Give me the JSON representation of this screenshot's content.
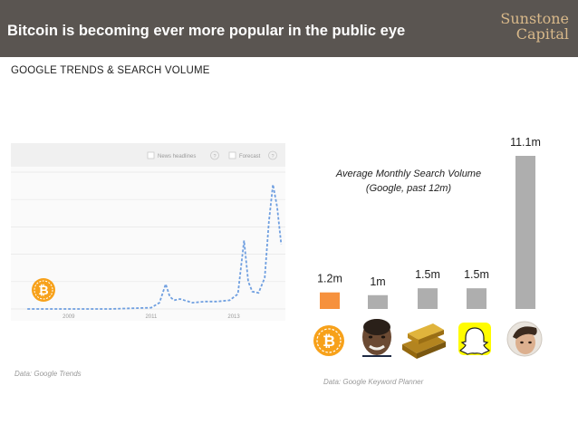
{
  "header": {
    "title": "Bitcoin is becoming ever more popular in the public eye",
    "brand_line1": "Sunstone",
    "brand_line2": "Capital"
  },
  "section_title": "GOOGLE TRENDS & SEARCH VOLUME",
  "trends_panel": {
    "legend_news": "News headlines",
    "legend_forecast": "Forecast",
    "help_glyph": "?",
    "year_labels": [
      "2009",
      "2011",
      "2013"
    ],
    "source": "Data: Google Trends"
  },
  "volume_panel": {
    "title_line1": "Average Monthly Search Volume",
    "title_line2": "(Google, past 12m)",
    "source": "Data: Google Keyword Planner"
  },
  "colors": {
    "header_bg": "#5a5551",
    "brand": "#d9b98a",
    "bitcoin_bar": "#f6913d",
    "other_bars": "#aeaeae",
    "trend_line": "#6f9fe0",
    "bitcoin_icon": "#f7a11a"
  },
  "chart_data": [
    {
      "type": "line",
      "title": "",
      "xlabel": "",
      "ylabel": "",
      "x_ticks": [
        "2009",
        "2011",
        "2013"
      ],
      "x": [
        2008.0,
        2009.0,
        2010.0,
        2011.0,
        2011.2,
        2011.35,
        2011.45,
        2011.55,
        2011.7,
        2012.0,
        2012.3,
        2012.6,
        2012.9,
        2013.1,
        2013.25,
        2013.35,
        2013.45,
        2013.6,
        2013.75,
        2013.85,
        2013.95,
        2014.05,
        2014.15
      ],
      "series": [
        {
          "values": [
            0,
            0,
            0,
            1,
            5,
            20,
            10,
            7,
            8,
            5,
            6,
            6,
            7,
            12,
            55,
            22,
            14,
            13,
            25,
            70,
            100,
            82,
            52
          ]
        }
      ],
      "ylim": [
        0,
        110
      ],
      "grid": true
    },
    {
      "type": "bar",
      "title": "Average Monthly Search Volume (Google, past 12m)",
      "categories": [
        "Bitcoin",
        "Obama",
        "Gold",
        "Snapchat",
        "Justin Bieber"
      ],
      "values": [
        1.2,
        1.0,
        1.5,
        1.5,
        11.1
      ],
      "value_labels": [
        "1.2m",
        "1m",
        "1.5m",
        "1.5m",
        "11.1m"
      ],
      "unit": "m",
      "ylim": [
        0,
        11.1
      ],
      "xlabel": "",
      "ylabel": ""
    }
  ]
}
